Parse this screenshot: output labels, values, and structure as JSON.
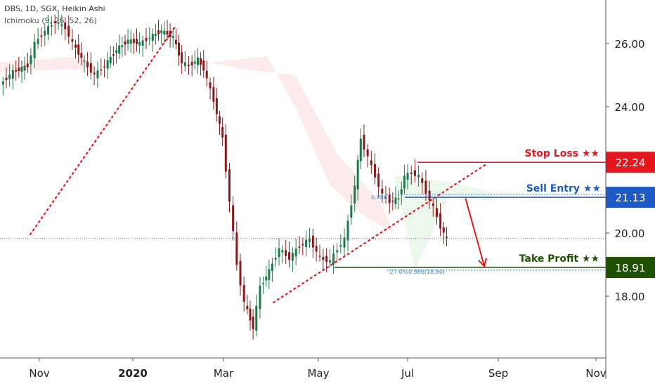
{
  "header": {
    "symbol_line": "DBS, 1D, SGX, Heikin Ashi",
    "indicator_line": "Ichimoku (9, 26, 52, 26)"
  },
  "chart_data": {
    "type": "candlestick",
    "title": "",
    "xlabel": "",
    "ylabel": "",
    "ylim": [
      16.0,
      27.3
    ],
    "x_tick_labels": [
      "Nov",
      "2020",
      "Mar",
      "May",
      "Jul",
      "Sep",
      "Nov"
    ],
    "y_tick_labels": [
      "18.00",
      "20.00",
      "24.00",
      "26.00"
    ],
    "grid": false,
    "series": [
      {
        "name": "price",
        "points": [
          [
            "Oct 1",
            24.7
          ],
          [
            "Oct 10",
            25.1
          ],
          [
            "Oct 20",
            25.3
          ],
          [
            "Oct 25",
            26.0
          ],
          [
            "Nov 1",
            26.4
          ],
          [
            "Nov 8",
            26.7
          ],
          [
            "Nov 15",
            26.5
          ],
          [
            "Nov 20",
            26.0
          ],
          [
            "Nov 28",
            25.4
          ],
          [
            "Dec 5",
            25.0
          ],
          [
            "Dec 12",
            25.3
          ],
          [
            "Dec 20",
            25.8
          ],
          [
            "Dec 28",
            26.1
          ],
          [
            "Jan 5",
            26.0
          ],
          [
            "Jan 12",
            26.2
          ],
          [
            "Jan 20",
            26.4
          ],
          [
            "Jan 28",
            26.2
          ],
          [
            "Feb 3",
            25.4
          ],
          [
            "Feb 8",
            25.3
          ],
          [
            "Feb 14",
            25.5
          ],
          [
            "Feb 18",
            25.2
          ],
          [
            "Feb 25",
            24.2
          ],
          [
            "Mar 2",
            23.0
          ],
          [
            "Mar 7",
            21.0
          ],
          [
            "Mar 12",
            19.0
          ],
          [
            "Mar 17",
            17.8
          ],
          [
            "Mar 23",
            17.0
          ],
          [
            "Mar 28",
            18.3
          ],
          [
            "Apr 3",
            18.8
          ],
          [
            "Apr 10",
            19.5
          ],
          [
            "Apr 17",
            19.2
          ],
          [
            "Apr 24",
            19.6
          ],
          [
            "May 1",
            19.8
          ],
          [
            "May 8",
            19.2
          ],
          [
            "May 15",
            19.1
          ],
          [
            "May 20",
            19.5
          ],
          [
            "May 25",
            19.8
          ],
          [
            "Jun 1",
            21.5
          ],
          [
            "Jun 5",
            23.0
          ],
          [
            "Jun 10",
            22.4
          ],
          [
            "Jun 15",
            21.8
          ],
          [
            "Jun 20",
            21.2
          ],
          [
            "Jun 25",
            21.0
          ],
          [
            "Jul 1",
            21.1
          ],
          [
            "Jul 5",
            21.8
          ],
          [
            "Jul 10",
            21.9
          ],
          [
            "Jul 15",
            21.8
          ],
          [
            "Jul 20",
            21.3
          ],
          [
            "Jul 25",
            20.8
          ],
          [
            "Jul 30",
            20.2
          ],
          [
            "Aug 3",
            19.8
          ]
        ]
      }
    ],
    "trendlines": [
      {
        "name": "upper",
        "from": [
          "Jan 28",
          26.5
        ],
        "to": [
          "Oct 20",
          19.9
        ]
      },
      {
        "name": "lower",
        "from": [
          "Apr 5",
          17.8
        ],
        "to": [
          "Aug 30",
          22.2
        ]
      }
    ],
    "levels": [
      {
        "label": "Stop Loss ★★",
        "value": "22.24",
        "color": "#e5161c"
      },
      {
        "label": "Sell Entry ★★",
        "value": "21.13",
        "color": "#1e5bc6"
      },
      {
        "label": "Take Profit ★★",
        "value": "18.91",
        "color": "#1e5200"
      }
    ],
    "fib_labels": [
      "0.886",
      "-27.0%",
      "0.886(18.80)"
    ],
    "current_price": 19.83,
    "arrow": {
      "from": [
        "Aug 15",
        21.1
      ],
      "to": [
        "Aug 28",
        18.9
      ],
      "color": "#e5161c"
    }
  }
}
